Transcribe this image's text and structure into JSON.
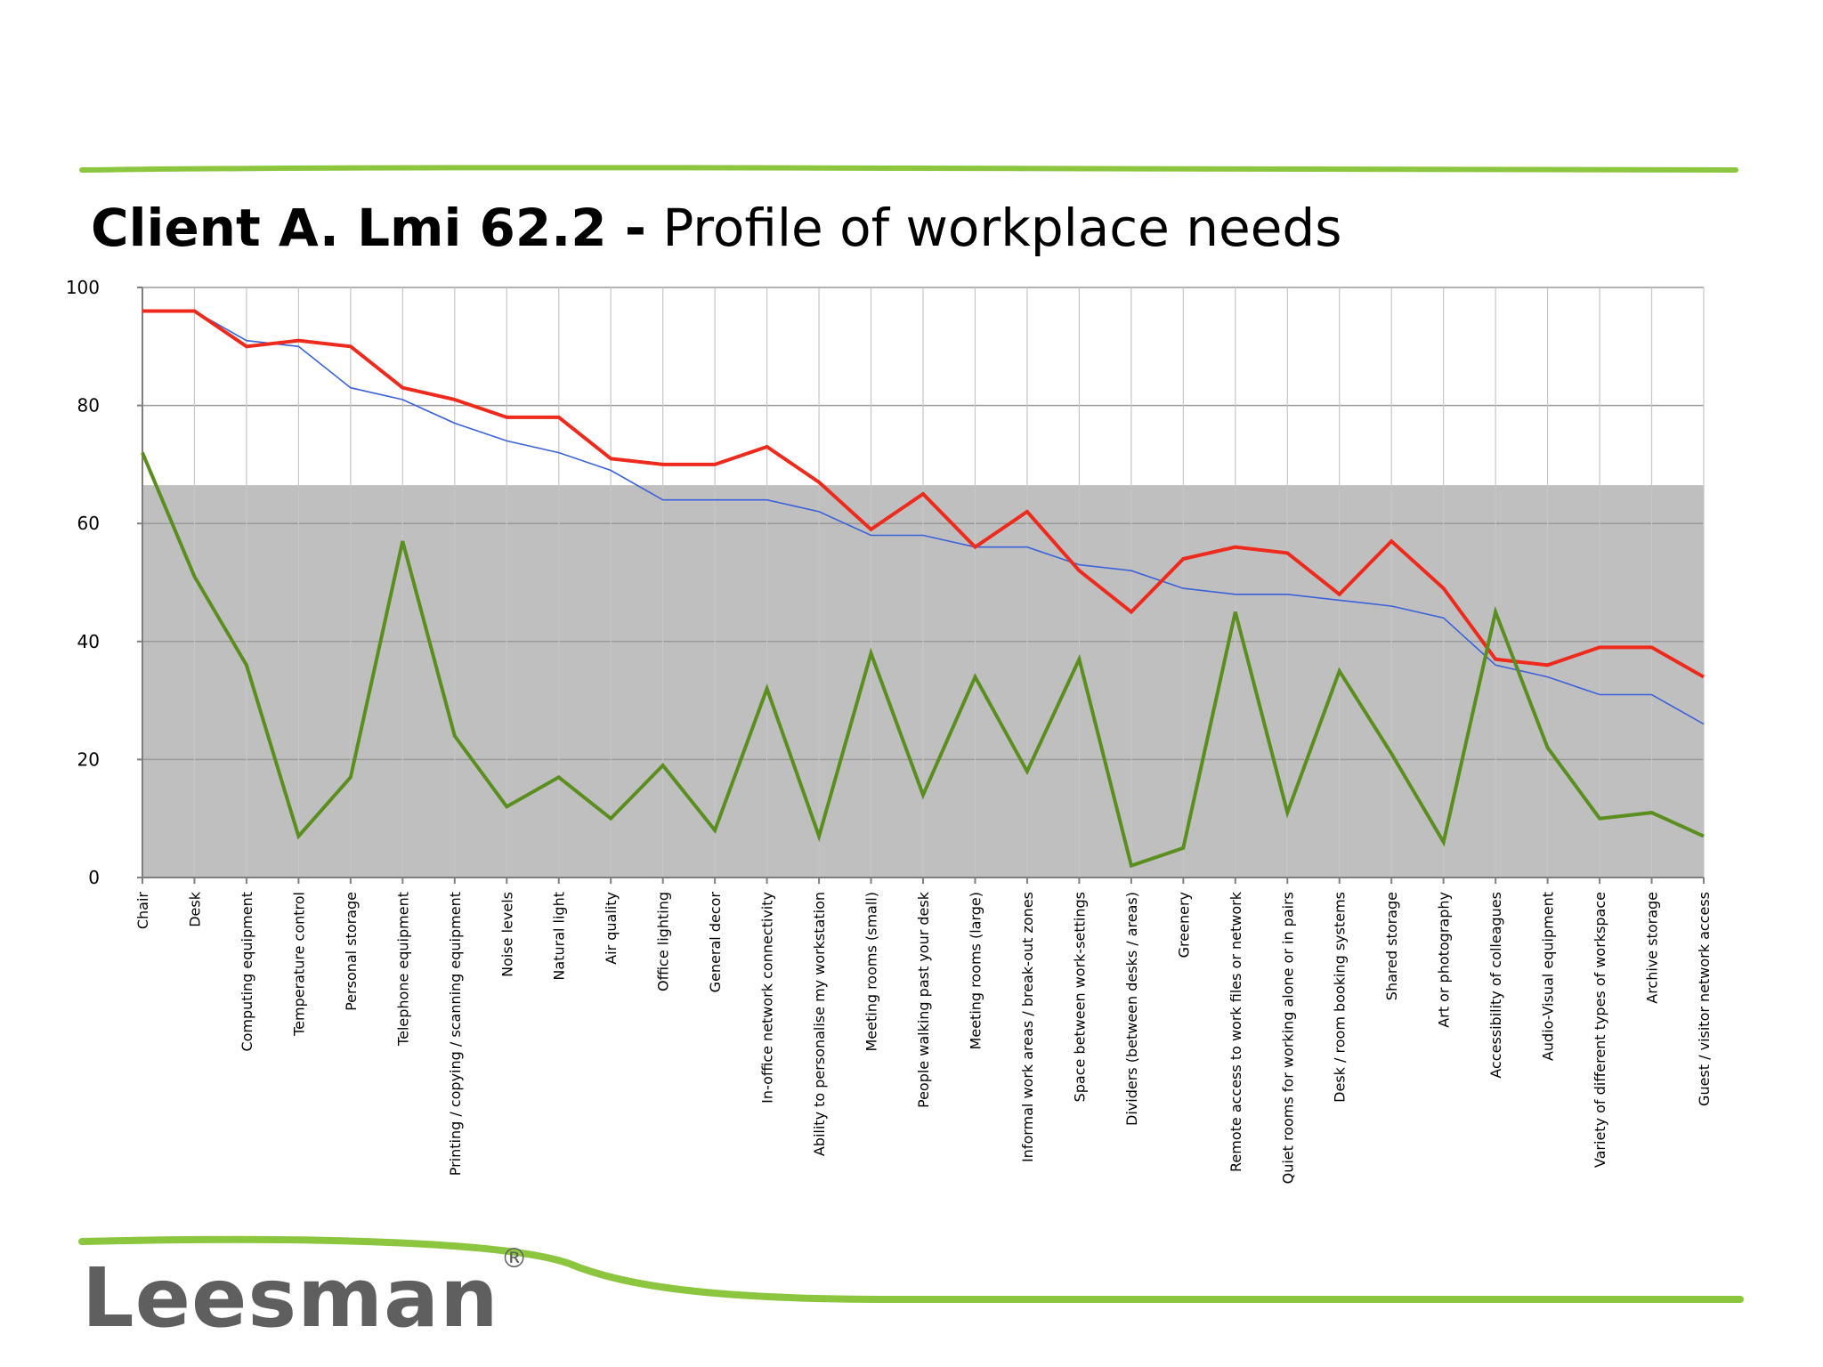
{
  "title": {
    "bold": "Client A. Lmi 62.2 -",
    "normal": "Profile of workplace needs"
  },
  "logo": {
    "name": "Leesman",
    "mark": "®"
  },
  "colors": {
    "red_series": "#ee2a1c",
    "blue_series": "#3a62d9",
    "green_series": "#5a8f1f",
    "band": "#c0bfc0",
    "accent_green": "#8cc63f",
    "logo_gray": "#5f5f5f"
  },
  "chart_data": {
    "type": "line",
    "title": "Client A. Lmi 62.2 - Profile of workplace needs",
    "ylim": [
      0,
      100
    ],
    "yticks": [
      0,
      20,
      40,
      60,
      80,
      100
    ],
    "band": [
      0,
      66.5
    ],
    "grid": true,
    "categories": [
      "Chair",
      "Desk",
      "Computing equipment",
      "Temperature control",
      "Personal storage",
      "Telephone equipment",
      "Printing / copying / scanning equipment",
      "Noise levels",
      "Natural light",
      "Air quality",
      "Office lighting",
      "General decor",
      "In-office network connectivity",
      "Ability to personalise my workstation",
      "Meeting rooms (small)",
      "People walking past your desk",
      "Meeting rooms (large)",
      "Informal work areas / break-out zones",
      "Space between work-settings",
      "Dividers (between desks / areas)",
      "Greenery",
      "Remote access to work files or network",
      "Quiet rooms for working alone or in pairs",
      "Desk / room booking systems",
      "Shared storage",
      "Art or photography",
      "Accessibility of colleagues",
      "Audio-Visual equipment",
      "Variety of different types of workspace",
      "Archive storage",
      "Guest / visitor network access"
    ],
    "series": [
      {
        "name": "Red",
        "color": "#ee2a1c",
        "width": 4,
        "values": [
          96,
          96,
          90,
          91,
          90,
          83,
          81,
          78,
          78,
          71,
          70,
          70,
          73,
          67,
          59,
          65,
          56,
          62,
          52,
          45,
          54,
          56,
          55,
          48,
          57,
          49,
          37,
          36,
          39,
          39,
          34
        ]
      },
      {
        "name": "Blue",
        "color": "#3a62d9",
        "width": 1.6,
        "values": [
          96,
          96,
          91,
          90,
          83,
          81,
          77,
          74,
          72,
          69,
          64,
          64,
          64,
          62,
          58,
          58,
          56,
          56,
          53,
          52,
          49,
          48,
          48,
          47,
          46,
          44,
          36,
          34,
          31,
          31,
          26
        ]
      },
      {
        "name": "Green",
        "color": "#5a8f1f",
        "width": 4,
        "values": [
          72,
          51,
          36,
          7,
          17,
          57,
          24,
          12,
          17,
          10,
          19,
          8,
          32,
          7,
          38,
          14,
          34,
          18,
          37,
          2,
          5,
          45,
          11,
          35,
          21,
          6,
          45,
          22,
          10,
          11,
          7
        ]
      }
    ]
  }
}
